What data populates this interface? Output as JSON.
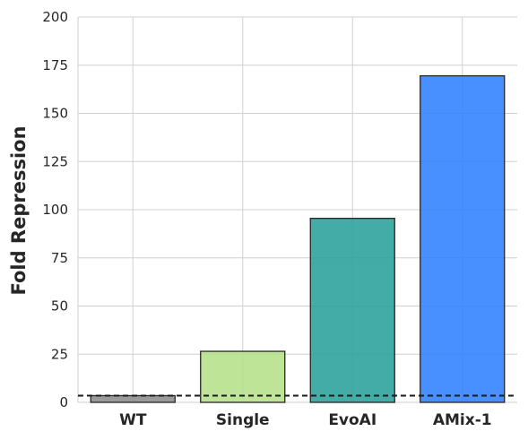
{
  "chart_data": {
    "type": "bar",
    "title": "",
    "xlabel": "",
    "ylabel": "Fold Repression",
    "categories": [
      "WT",
      "Single",
      "EvoAI",
      "AMix-1"
    ],
    "values": [
      3.5,
      26.5,
      95.5,
      169.5
    ],
    "colors": [
      "#8c8c8c",
      "#b5e08a",
      "#2aa19b",
      "#2f80ff"
    ],
    "ylim": [
      0,
      200
    ],
    "yticks": [
      0,
      25,
      50,
      75,
      100,
      125,
      150,
      175,
      200
    ],
    "reference_line": {
      "value": 3.5,
      "style": "dashed",
      "color": "#1a1a1a"
    },
    "grid": true,
    "legend": "none"
  }
}
